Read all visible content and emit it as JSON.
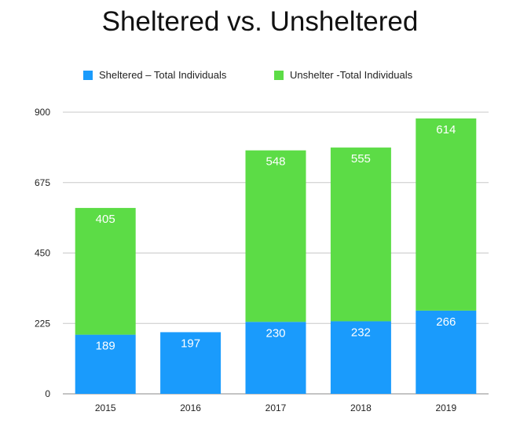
{
  "chart_data": {
    "type": "bar",
    "stacked": true,
    "title": "Sheltered vs. Unsheltered",
    "xlabel": "",
    "ylabel": "",
    "categories": [
      "2015",
      "2016",
      "2017",
      "2018",
      "2019"
    ],
    "ylim": [
      0,
      900
    ],
    "yticks": [
      0,
      225,
      450,
      675,
      900
    ],
    "grid": true,
    "legend_position": "top",
    "series": [
      {
        "name": "Sheltered – Total Individuals",
        "values": [
          189,
          197,
          230,
          232,
          266
        ],
        "color": "#1a9bfc"
      },
      {
        "name": "Unshelter -Total Individuals",
        "values": [
          405,
          null,
          548,
          555,
          614
        ],
        "color": "#5cdc46"
      }
    ]
  }
}
